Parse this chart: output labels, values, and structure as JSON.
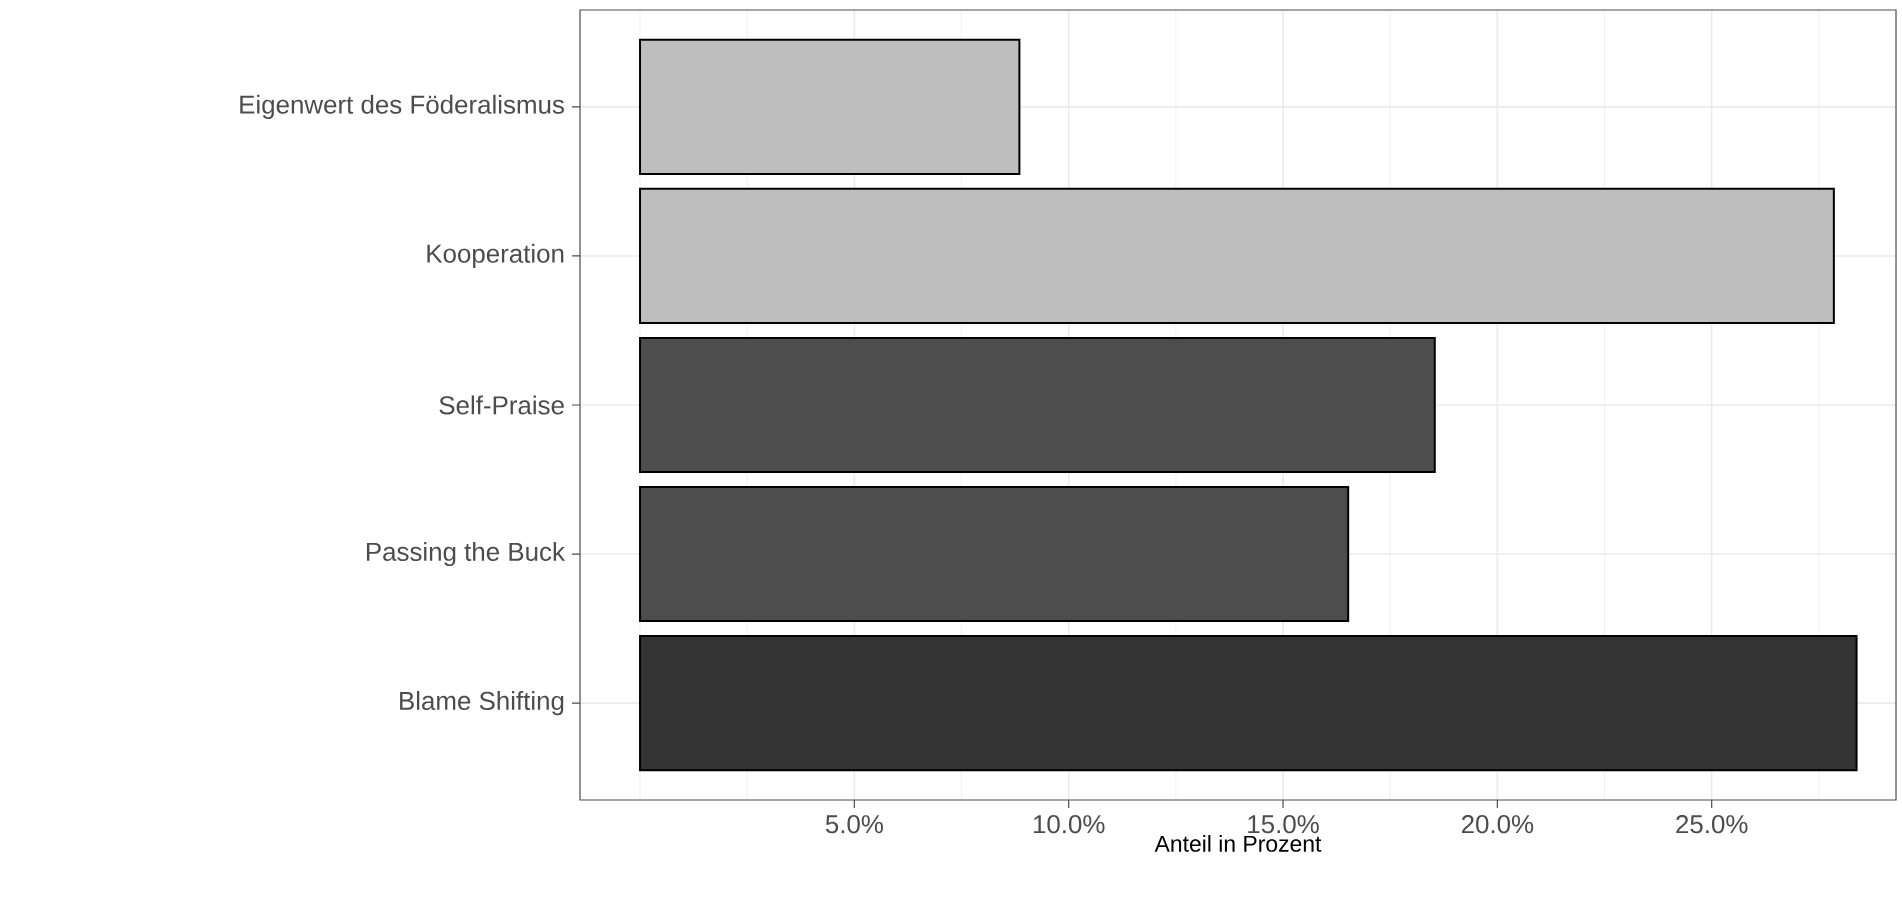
{
  "chart_data": {
    "type": "bar",
    "orientation": "horizontal",
    "xlabel": "Anteil in Prozent",
    "categories": [
      "Eigenwert des Föderalismus",
      "Kooperation",
      "Self-Praise",
      "Passing the Buck",
      "Blame Shifting"
    ],
    "values": [
      8.85,
      27.85,
      18.54,
      16.52,
      28.38
    ],
    "colors": [
      "#bebebe",
      "#bebebe",
      "#4d4d4d",
      "#4d4d4d",
      "#333333"
    ],
    "xlim": [
      -1.4,
      29.3
    ],
    "xticks": [
      {
        "value": 5,
        "label": "5.0%"
      },
      {
        "value": 10,
        "label": "10.0%"
      },
      {
        "value": 15,
        "label": "15.0%"
      },
      {
        "value": 20,
        "label": "20.0%"
      },
      {
        "value": 25,
        "label": "25.0%"
      }
    ],
    "grid": true
  }
}
